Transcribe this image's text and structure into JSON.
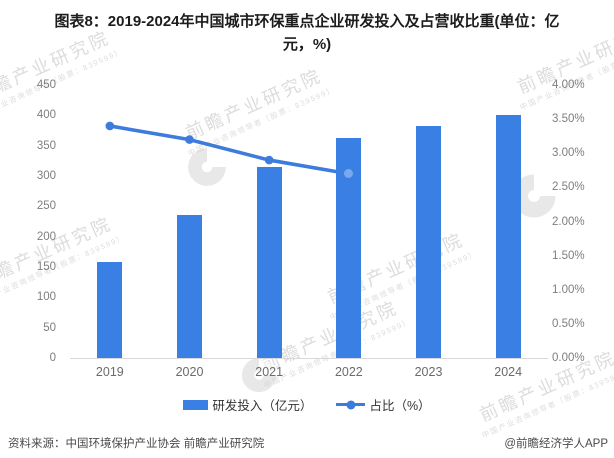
{
  "title": {
    "line1": "图表8：2019-2024年中国城市环保重点企业研发投入及占营收比重(单位：亿",
    "line2": "元，%)"
  },
  "colors": {
    "bar": "#3a80e4",
    "line": "#3d7bdc",
    "axis_text": "#7e7e7e",
    "axis_line": "#d8d8d8",
    "watermark": "#c6c6c6"
  },
  "chart_data": {
    "type": "bar",
    "subtype": "bar+line combo, dual axis",
    "categories": [
      "2019",
      "2020",
      "2021",
      "2022",
      "2023",
      "2024"
    ],
    "series": [
      {
        "name": "研发投入（亿元）",
        "type": "bar",
        "axis": "left",
        "values": [
          158,
          236,
          315,
          363,
          382,
          400
        ]
      },
      {
        "name": "占比（%）",
        "type": "line",
        "axis": "right",
        "values": [
          3.4,
          3.2,
          2.9,
          2.7,
          null,
          null
        ]
      }
    ],
    "left_axis": {
      "min": 0,
      "max": 450,
      "ticks": [
        "450",
        "400",
        "350",
        "300",
        "250",
        "200",
        "150",
        "100",
        "50",
        "0"
      ]
    },
    "right_axis": {
      "min": 0,
      "max": 4,
      "ticks": [
        "4.00%",
        "3.50%",
        "3.00%",
        "2.50%",
        "2.00%",
        "1.50%",
        "1.00%",
        "0.50%",
        "0.00%"
      ]
    },
    "grid": false,
    "legend_position": "bottom",
    "title": "图表8：2019-2024年中国城市环保重点企业研发投入及占营收比重(单位：亿元，%)"
  },
  "legend": {
    "bar_label": "研发投入（亿元）",
    "line_label": "占比（%）"
  },
  "footer": {
    "source": "资料来源：中国环境保护产业协会 前瞻产业研究院",
    "brand": "@前瞻经济学人APP"
  },
  "watermarks": {
    "main": "前瞻产业研究院",
    "sub": "中国产业咨询领导者（股票：839599）"
  }
}
